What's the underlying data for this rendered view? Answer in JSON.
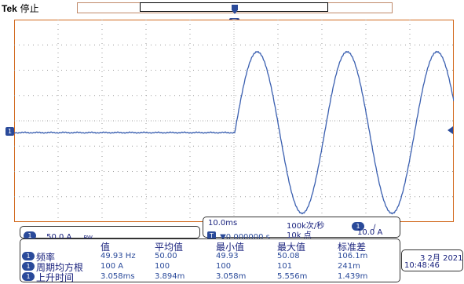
{
  "header": {
    "brand": "Tek",
    "status": "停止"
  },
  "markers": {
    "trigger_marker": "T",
    "channel_marker": "1"
  },
  "horizontal": {
    "time_per_div": "10.0ms",
    "sample_rate": "100k次/秒",
    "trigger_position": "▼0.000000 s",
    "record_length": "10k 点"
  },
  "trigger": {
    "channel": "1",
    "slope": "∕",
    "level": "10.0 A"
  },
  "vertical": {
    "channel": "1",
    "scale": "50.0 A",
    "bw_limit": "BW"
  },
  "measurements": {
    "headers": [
      "值",
      "平均值",
      "最小值",
      "最大值",
      "标准差"
    ],
    "rows": [
      {
        "channel": "1",
        "label": "频率",
        "value": "49.93 Hz",
        "mean": "50.00",
        "min": "49.93",
        "max": "50.08",
        "std": "106.1m"
      },
      {
        "channel": "1",
        "label": "周期均方根",
        "value": "100 A",
        "mean": "100",
        "min": "100",
        "max": "101",
        "std": "241m"
      },
      {
        "channel": "1",
        "label": "上升时间",
        "value": "3.058ms",
        "mean": "3.894m",
        "min": "3.058m",
        "max": "5.556m",
        "std": "1.439m"
      }
    ]
  },
  "clock": {
    "date": "3 2月 2021",
    "time": "10:48:46"
  },
  "colors": {
    "trace": "#3a5fb0",
    "grid": "#9a9a9a",
    "border": "#d2691e",
    "badge": "#2a4a9a"
  }
}
